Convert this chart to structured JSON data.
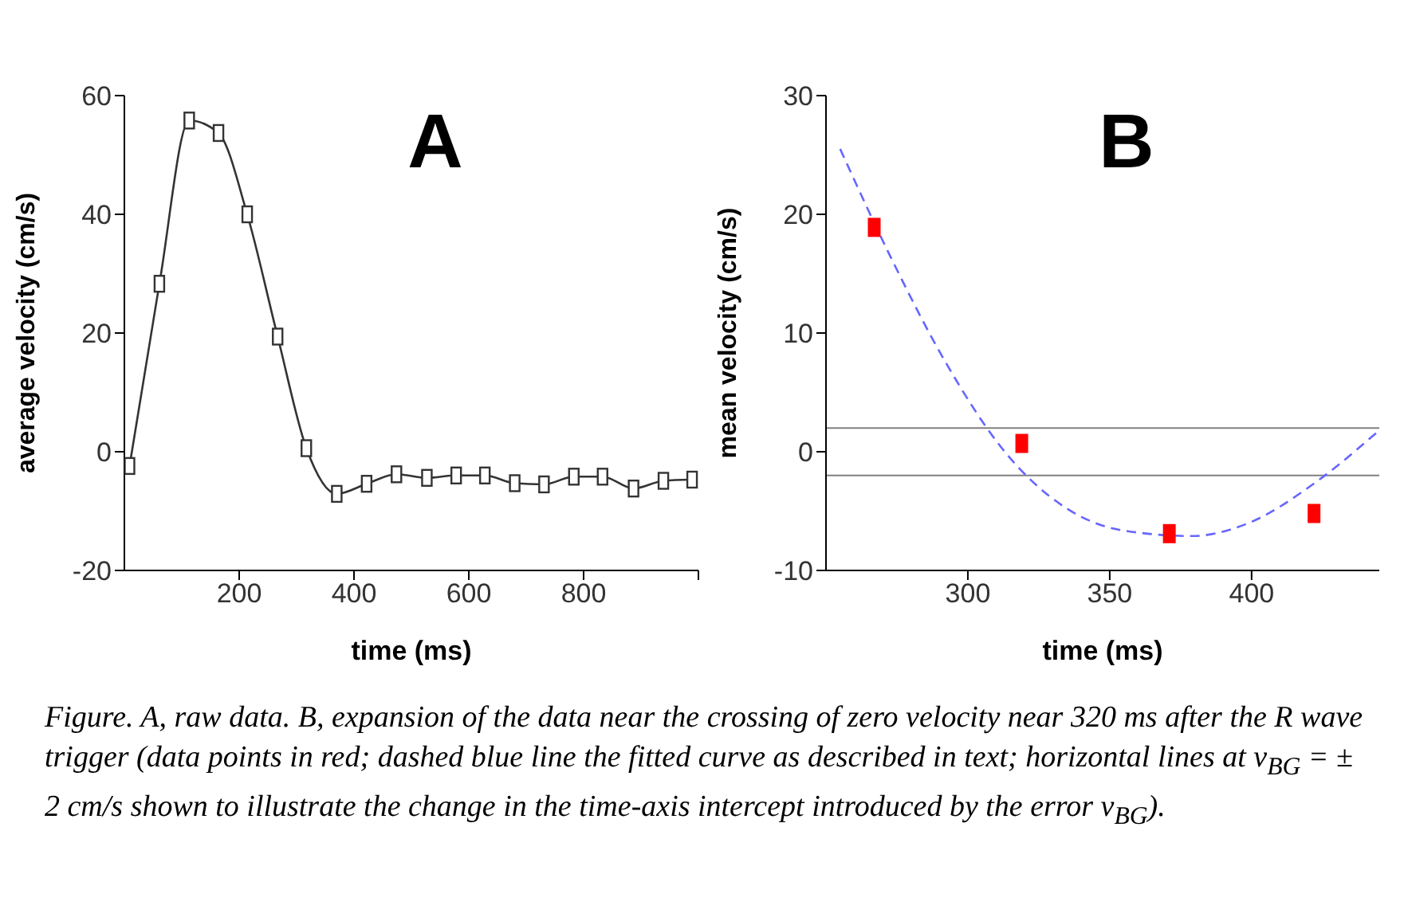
{
  "chart_data": [
    {
      "type": "line",
      "title": "A",
      "xlabel": "time (ms)",
      "ylabel": "average velocity (cm/s)",
      "xlim": [
        0,
        1000
      ],
      "xticks": [
        200,
        400,
        600,
        800,
        {
          "value": 1000,
          "label": null
        }
      ],
      "ylim": [
        -20,
        60
      ],
      "yticks": [
        -20,
        0,
        20,
        40,
        60
      ],
      "marker": "square",
      "line_style": "solid",
      "series": [
        {
          "color": "#333333",
          "x": [
            9,
            61,
            113,
            164,
            214,
            267,
            317,
            370,
            422,
            474,
            527,
            578,
            628,
            680,
            731,
            783,
            833,
            887,
            939,
            989
          ],
          "values": [
            -2.4,
            28.3,
            55.8,
            53.7,
            40,
            19.4,
            0.6,
            -7.1,
            -5.4,
            -3.8,
            -4.4,
            -4,
            -4,
            -5.3,
            -5.5,
            -4.2,
            -4.2,
            -6.2,
            -4.9,
            -4.7
          ]
        }
      ],
      "annotations": [
        "Figure.  A, raw data.  B, expansion of the data near the crossing of zero velocity near 320 ms after the R wave trigger (data points in red; dashed blue line the fitted curve as described in text; horizontal lines at v$_{BG}$ = ± 2 cm/s shown to illustrate the change in the time-axis intercept introduced by the error v$_{BG}$)."
      ]
    },
    {
      "type": "scatter",
      "title": "B",
      "xlabel": "time (ms)",
      "ylabel": "mean velocity (cm/s)",
      "xlim": [
        250,
        445
      ],
      "xticks": [
        300,
        350,
        400
      ],
      "ylim": [
        -10,
        30
      ],
      "yticks": [
        -10,
        0,
        10,
        20,
        30
      ],
      "ref_lines": [
        {
          "axis": "y",
          "value": 2,
          "color": "#808080"
        },
        {
          "axis": "y",
          "value": -2,
          "color": "#808080"
        }
      ],
      "series": [
        {
          "color": "#ff0000",
          "marker": "square",
          "x": [
            267,
            319,
            371,
            422
          ],
          "values": [
            18.9,
            0.7,
            -6.9,
            -5.2
          ]
        },
        {
          "type": "line",
          "color": "#6666ff",
          "marker": "none",
          "line_style": "dashed",
          "x": [
            255,
            273,
            292,
            313,
            335,
            354,
            379,
            398,
            423,
            444
          ],
          "values": [
            25.5,
            16.3,
            7.6,
            0,
            -4.8,
            -6.6,
            -7.1,
            -6.1,
            -2.5,
            1.6
          ]
        }
      ]
    }
  ]
}
